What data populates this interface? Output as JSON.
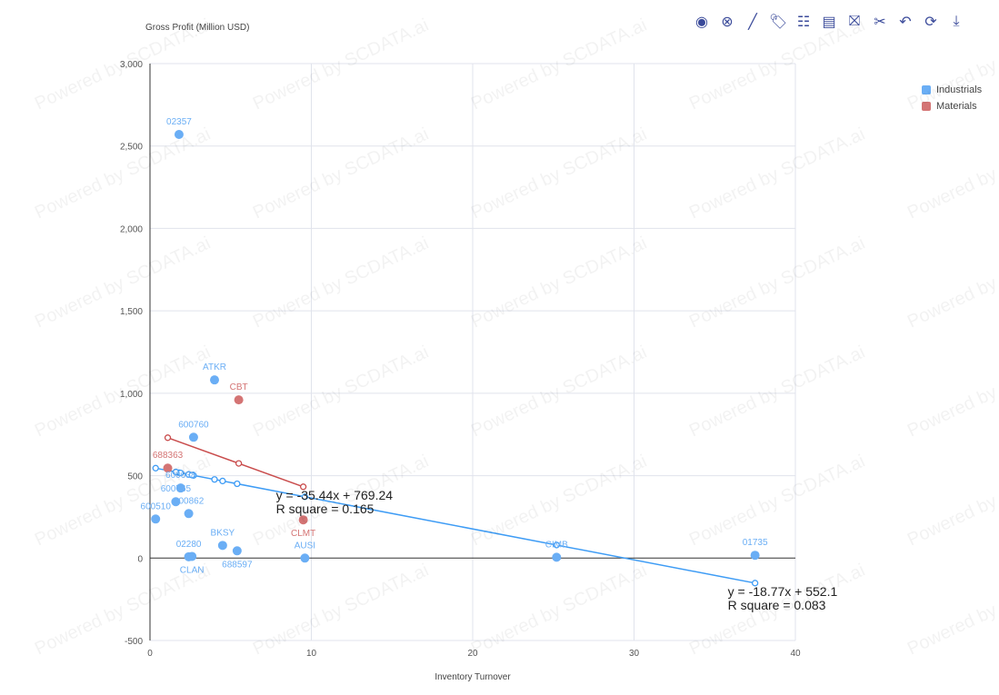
{
  "watermark": "Powered by SCDATA.ai",
  "toolbar": [
    {
      "name": "select-icon",
      "glyph": "◉"
    },
    {
      "name": "clear-icon",
      "glyph": "⊗"
    },
    {
      "name": "line-icon",
      "glyph": "╱"
    },
    {
      "name": "tag-icon",
      "glyph": "🏷"
    },
    {
      "name": "table-icon",
      "glyph": "☷"
    },
    {
      "name": "comment-icon",
      "glyph": "▤"
    },
    {
      "name": "hide-comment-icon",
      "glyph": "⛝"
    },
    {
      "name": "cut-icon",
      "glyph": "✂"
    },
    {
      "name": "undo-icon",
      "glyph": "↶"
    },
    {
      "name": "refresh-icon",
      "glyph": "⟳"
    },
    {
      "name": "download-icon",
      "glyph": "⤓"
    }
  ],
  "chart_data": {
    "type": "scatter",
    "ylabel": "Gross Profit (Million USD)",
    "xlabel": "Inventory Turnover",
    "xlim": [
      0,
      40
    ],
    "ylim": [
      -500,
      3000
    ],
    "xticks": [
      "0",
      "10",
      "20",
      "30",
      "40"
    ],
    "yticks": [
      "-500",
      "0",
      "500",
      "1,000",
      "1,500",
      "2,000",
      "2,500",
      "3,000"
    ],
    "grid": true,
    "legend_position": "top-right",
    "series": [
      {
        "name": "Industrials",
        "color": "#6aaef5",
        "line_color": "#3e9cf5",
        "points": [
          {
            "label": "02357",
            "x": 1.8,
            "y": 2570
          },
          {
            "label": "ATKR",
            "x": 4.0,
            "y": 1081
          },
          {
            "label": "600760",
            "x": 2.7,
            "y": 733
          },
          {
            "label": "600038",
            "x": 1.9,
            "y": 425
          },
          {
            "label": "600765",
            "x": 1.6,
            "y": 342
          },
          {
            "label": "600862",
            "x": 2.4,
            "y": 270
          },
          {
            "label": "600510",
            "x": 0.35,
            "y": 237
          },
          {
            "label": "BKSY",
            "x": 4.5,
            "y": 77
          },
          {
            "label": "688597",
            "x": 5.4,
            "y": 44
          },
          {
            "label": "02280",
            "x": 2.4,
            "y": 8
          },
          {
            "label": "CLAN",
            "x": 2.6,
            "y": 10
          },
          {
            "label": "AUSI",
            "x": 9.6,
            "y": 0
          },
          {
            "label": "CIMB",
            "x": 25.2,
            "y": 5
          },
          {
            "label": "01735",
            "x": 37.5,
            "y": 17
          }
        ],
        "trend": {
          "slope": -18.77,
          "intercept": 552.1,
          "equation": "y = -18.77x + 552.1",
          "r2": "R square = 0.083"
        }
      },
      {
        "name": "Materials",
        "color": "#d47474",
        "line_color": "#c94c4c",
        "points": [
          {
            "label": "688363",
            "x": 1.1,
            "y": 546
          },
          {
            "label": "CBT",
            "x": 5.5,
            "y": 960
          },
          {
            "label": "CLMT",
            "x": 9.5,
            "y": 232
          }
        ],
        "trend": {
          "slope": -35.44,
          "intercept": 769.24,
          "equation": "y = -35.44x + 769.24",
          "r2": "R square = 0.165"
        }
      }
    ]
  }
}
